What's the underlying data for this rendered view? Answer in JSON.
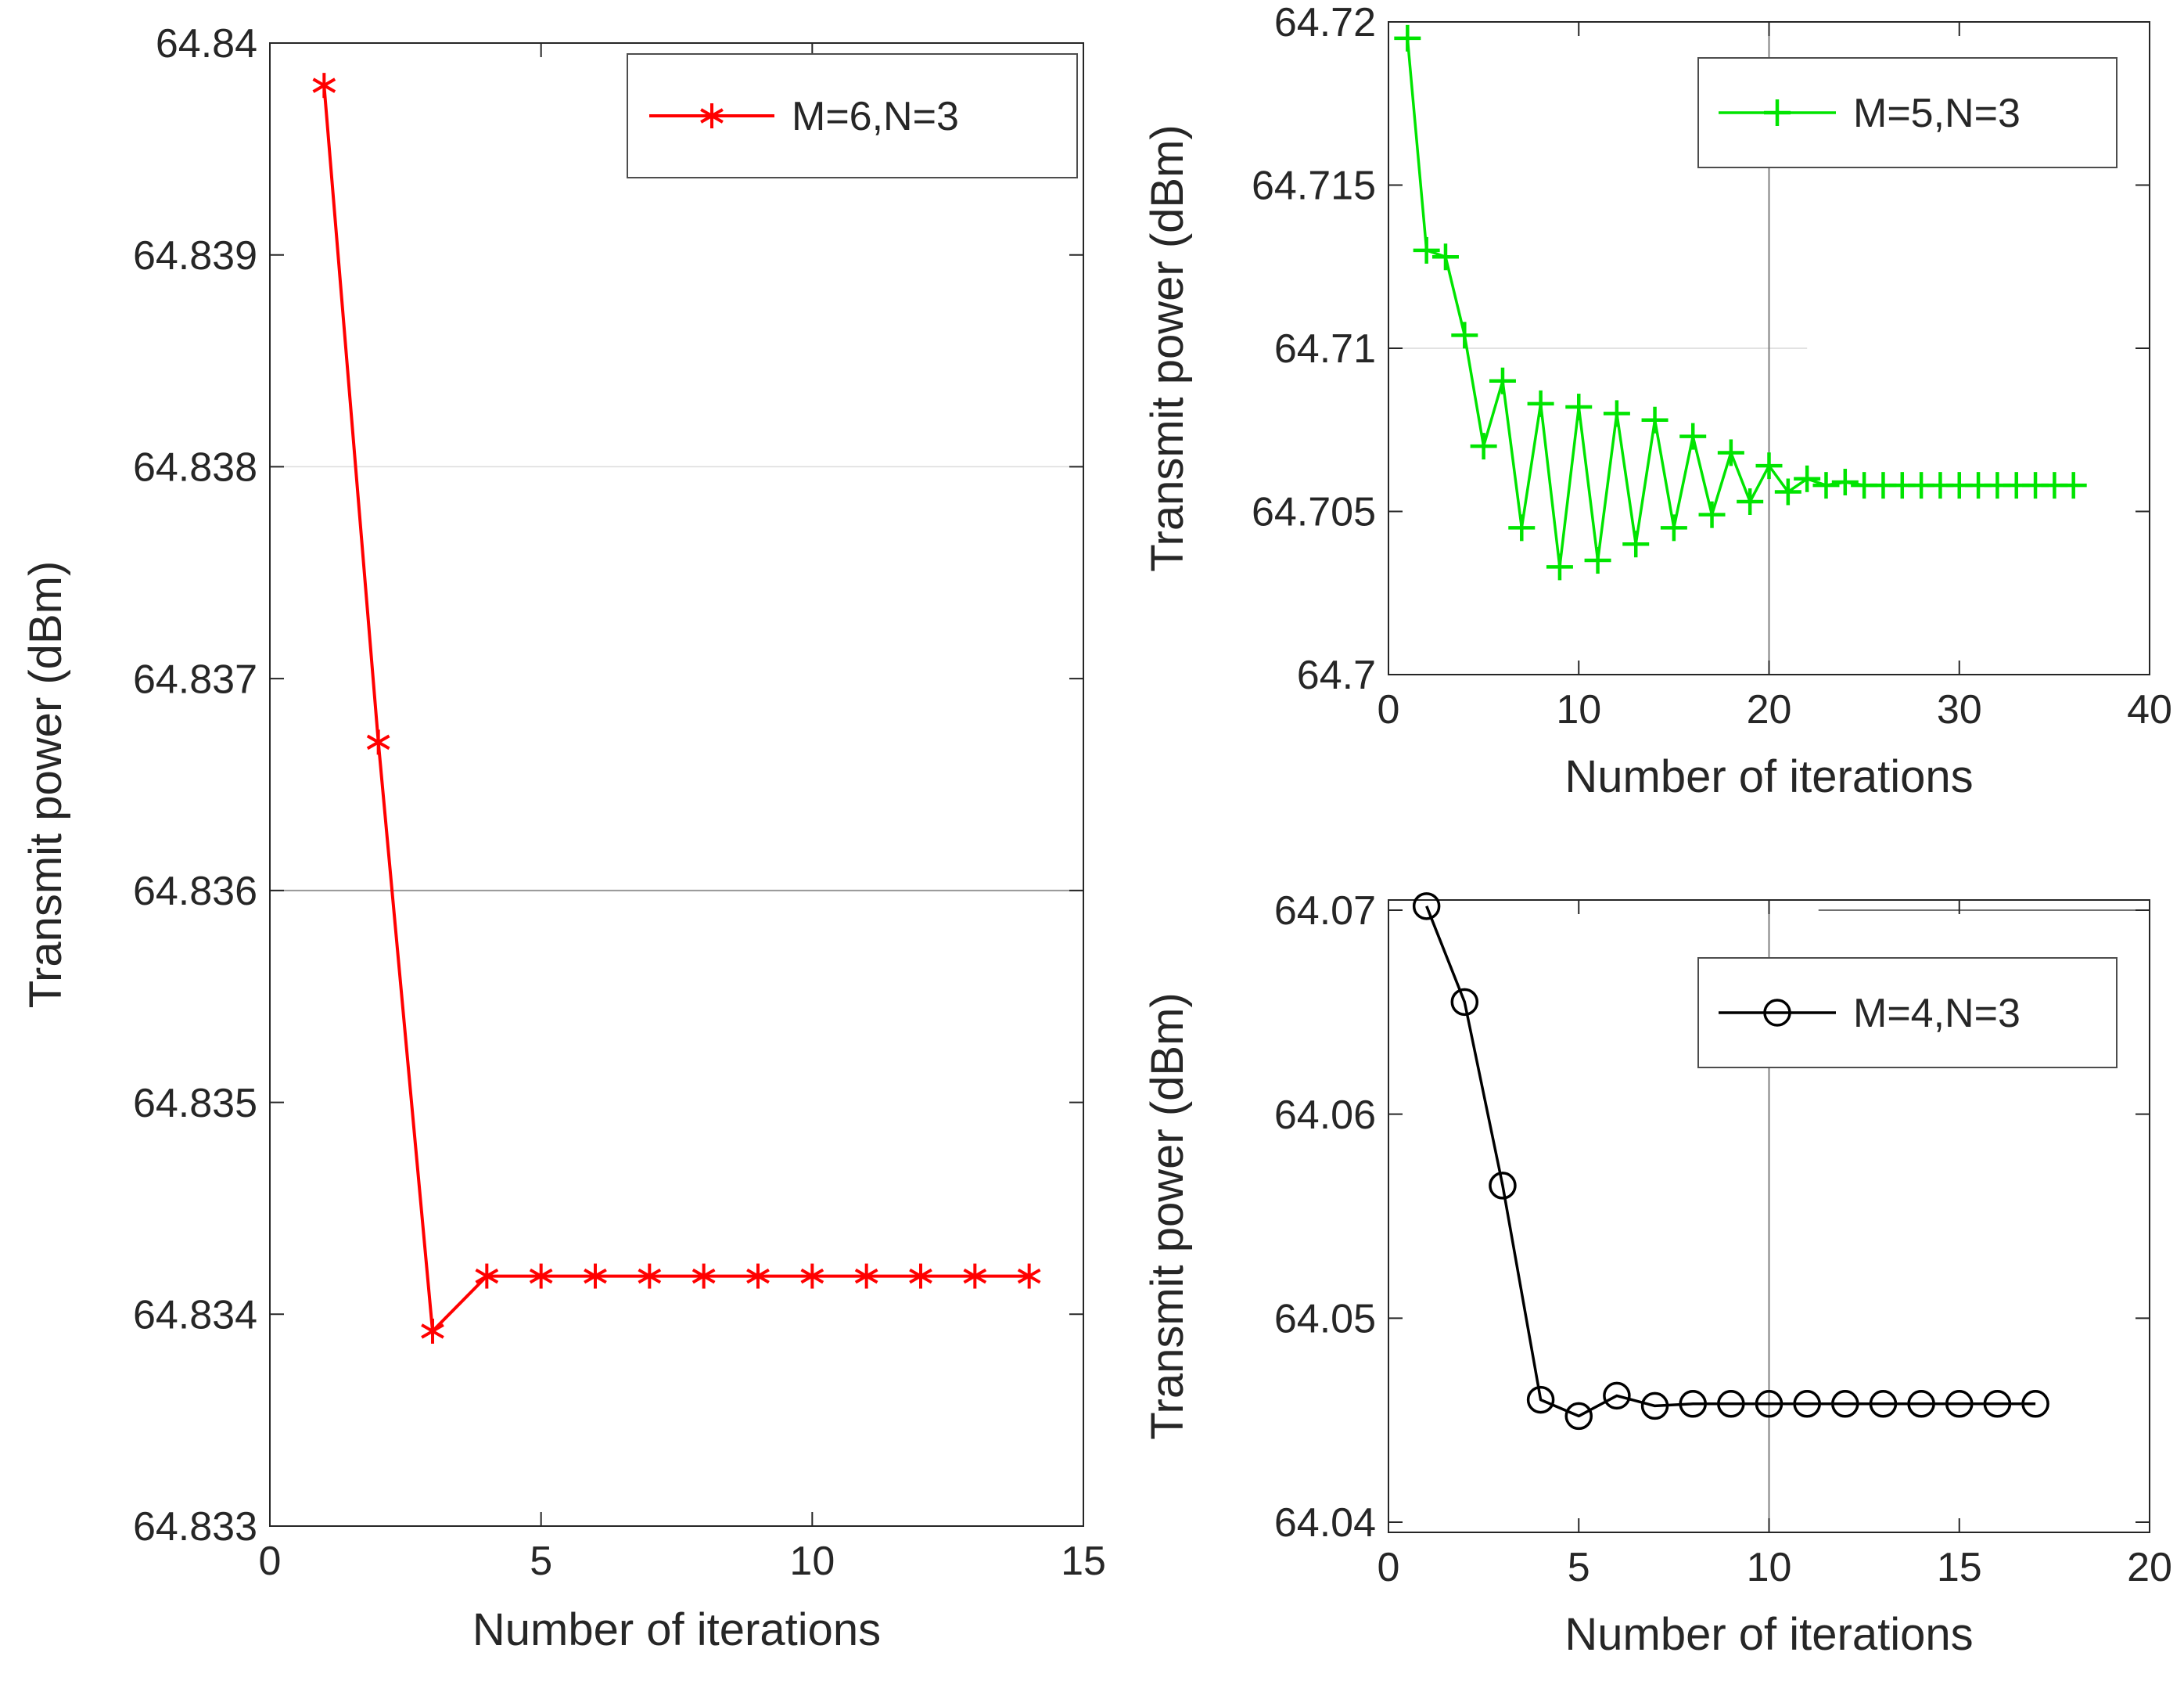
{
  "figure": {
    "background": "#ffffff",
    "text_color": "#262626",
    "axis_color": "#262626"
  },
  "chart_data": [
    {
      "id": "left",
      "type": "line",
      "title": "",
      "xlabel": "Number of iterations",
      "ylabel": "Transmit power (dBm)",
      "xlim": [
        0,
        15
      ],
      "ylim": [
        64.833,
        64.84
      ],
      "xticks": [
        0,
        5,
        10,
        15
      ],
      "xtick_labels": [
        "0",
        "5",
        "10",
        "15"
      ],
      "yticks": [
        64.833,
        64.834,
        64.835,
        64.836,
        64.837,
        64.838,
        64.839,
        64.84
      ],
      "ytick_labels": [
        "64.833",
        "64.834",
        "64.835",
        "64.836",
        "64.837",
        "64.838",
        "64.839",
        "64.84"
      ],
      "grid": "partial",
      "hlines": [
        {
          "y": 64.838,
          "color": "#dcdcdc",
          "width": 1.5
        },
        {
          "y": 64.836,
          "color": "#979797",
          "width": 2
        }
      ],
      "vlines": [],
      "legend": {
        "position": "top-right",
        "entries": [
          "M=6,N=3"
        ]
      },
      "series": [
        {
          "name": "M=6,N=3",
          "color": "#ff0000",
          "marker": "asterisk",
          "x": [
            1,
            2,
            3,
            4,
            5,
            6,
            7,
            8,
            9,
            10,
            11,
            12,
            13,
            14
          ],
          "y": [
            64.8398,
            64.8367,
            64.83392,
            64.83418,
            64.83418,
            64.83418,
            64.83418,
            64.83418,
            64.83418,
            64.83418,
            64.83418,
            64.83418,
            64.83418,
            64.83418
          ]
        }
      ]
    },
    {
      "id": "topright",
      "type": "line",
      "title": "",
      "xlabel": "Number of iterations",
      "ylabel": "Transmit power (dBm)",
      "xlim": [
        0,
        40
      ],
      "ylim": [
        64.7,
        64.72
      ],
      "xticks": [
        0,
        10,
        20,
        30,
        40
      ],
      "xtick_labels": [
        "0",
        "10",
        "20",
        "30",
        "40"
      ],
      "yticks": [
        64.7,
        64.705,
        64.71,
        64.715,
        64.72
      ],
      "ytick_labels": [
        "64.7",
        "64.705",
        "64.71",
        "64.715",
        "64.72"
      ],
      "grid": "partial",
      "hlines": [
        {
          "y": 64.71,
          "color": "#d8d8d8",
          "width": 1.5,
          "x_end": 22
        }
      ],
      "vlines": [
        {
          "x": 20,
          "color": "#808080",
          "width": 2
        }
      ],
      "legend": {
        "position": "top-right",
        "entries": [
          "M=5,N=3"
        ]
      },
      "series": [
        {
          "name": "M=5,N=3",
          "color": "#00e400",
          "marker": "plus",
          "x": [
            1,
            2,
            3,
            4,
            5,
            6,
            7,
            8,
            9,
            10,
            11,
            12,
            13,
            14,
            15,
            16,
            17,
            18,
            19,
            20,
            21,
            22,
            23,
            24,
            25,
            26,
            27,
            28,
            29,
            30,
            31,
            32,
            33,
            34,
            35,
            36
          ],
          "y": [
            64.7195,
            64.713,
            64.7128,
            64.7104,
            64.707,
            64.709,
            64.7045,
            64.7083,
            64.7033,
            64.7082,
            64.7035,
            64.708,
            64.704,
            64.7078,
            64.7045,
            64.7073,
            64.7049,
            64.7068,
            64.7053,
            64.7064,
            64.7056,
            64.706,
            64.7058,
            64.7059,
            64.7058,
            64.7058,
            64.7058,
            64.7058,
            64.7058,
            64.7058,
            64.7058,
            64.7058,
            64.7058,
            64.7058,
            64.7058,
            64.7058
          ]
        }
      ]
    },
    {
      "id": "bottomright",
      "type": "line",
      "title": "",
      "xlabel": "Number of iterations",
      "ylabel": "Transmit power (dBm)",
      "xlim": [
        0,
        20
      ],
      "ylim": [
        64.0395,
        64.0705
      ],
      "xticks": [
        0,
        5,
        10,
        15,
        20
      ],
      "xtick_labels": [
        "0",
        "5",
        "10",
        "15",
        "20"
      ],
      "yticks": [
        64.04,
        64.05,
        64.06,
        64.07
      ],
      "ytick_labels": [
        "64.04",
        "64.05",
        "64.06",
        "64.07"
      ],
      "grid": "partial",
      "hlines": [
        {
          "y": 64.07,
          "color": "#707070",
          "width": 2,
          "x_start": 11.3
        }
      ],
      "vlines": [
        {
          "x": 10,
          "color": "#808080",
          "width": 2
        }
      ],
      "legend": {
        "position": "top-right",
        "entries": [
          "M=4,N=3"
        ]
      },
      "series": [
        {
          "name": "M=4,N=3",
          "color": "#000000",
          "marker": "circle",
          "x": [
            1,
            2,
            3,
            4,
            5,
            6,
            7,
            8,
            9,
            10,
            11,
            12,
            13,
            14,
            15,
            16,
            17
          ],
          "y": [
            64.0702,
            64.0655,
            64.0565,
            64.046,
            64.0452,
            64.0462,
            64.0457,
            64.0458,
            64.0458,
            64.0458,
            64.0458,
            64.0458,
            64.0458,
            64.0458,
            64.0458,
            64.0458,
            64.0458
          ]
        }
      ]
    }
  ]
}
